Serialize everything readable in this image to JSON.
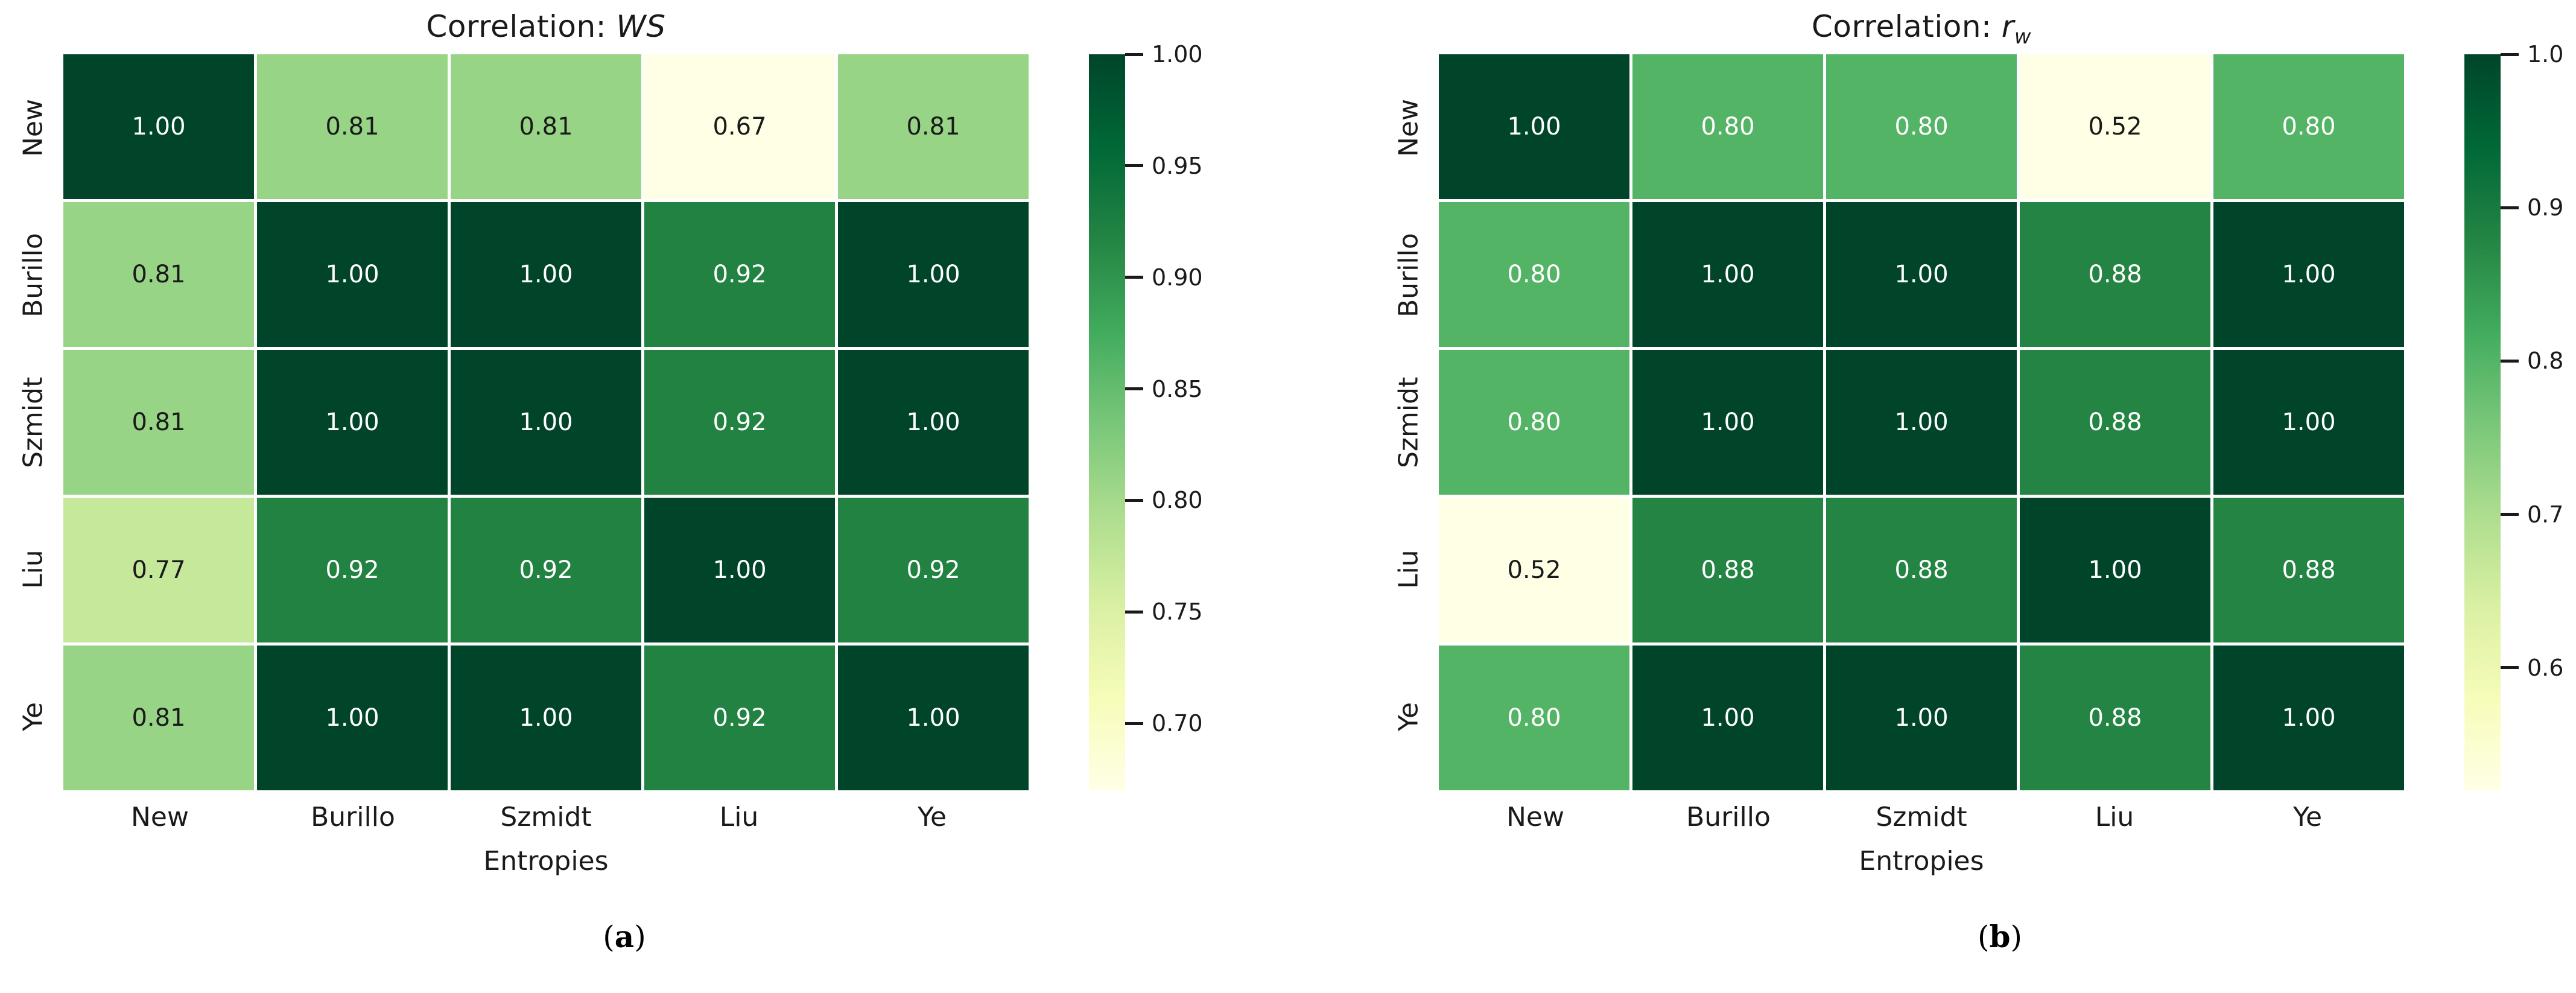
{
  "figure": {
    "background": "#ffffff",
    "description": "Two correlation heatmaps of entropy measures"
  },
  "colors": {
    "colormap_name": "YlGn",
    "colormap_stops": [
      "#ffffe5",
      "#f7fcb9",
      "#d9f0a3",
      "#addd8e",
      "#78c679",
      "#41ab5d",
      "#238443",
      "#006837",
      "#004529"
    ],
    "annotation_dark": "#1a1a1a",
    "annotation_light": "#ffffff",
    "axis_text": "#1a1a1a",
    "grid_line": "#ffffff"
  },
  "chart_data": [
    {
      "type": "heatmap",
      "title_prefix": "Correlation: ",
      "title_math": "WS",
      "title_sub": "",
      "xlabel": "Entropies",
      "x_categories": [
        "New",
        "Burillo",
        "Szmidt",
        "Liu",
        "Ye"
      ],
      "y_categories": [
        "New",
        "Burillo",
        "Szmidt",
        "Liu",
        "Ye"
      ],
      "values": [
        [
          1.0,
          0.81,
          0.81,
          0.67,
          0.81
        ],
        [
          0.81,
          1.0,
          1.0,
          0.92,
          1.0
        ],
        [
          0.81,
          1.0,
          1.0,
          0.92,
          1.0
        ],
        [
          0.77,
          0.92,
          0.92,
          1.0,
          0.92
        ],
        [
          0.81,
          1.0,
          1.0,
          0.92,
          1.0
        ]
      ],
      "value_format_decimals": 2,
      "vmin": 0.67,
      "vmax": 1.0,
      "colorbar_ticks": [
        {
          "value": 1.0,
          "label": "1.00"
        },
        {
          "value": 0.95,
          "label": "0.95"
        },
        {
          "value": 0.9,
          "label": "0.90"
        },
        {
          "value": 0.85,
          "label": "0.85"
        },
        {
          "value": 0.8,
          "label": "0.80"
        },
        {
          "value": 0.75,
          "label": "0.75"
        },
        {
          "value": 0.7,
          "label": "0.70"
        }
      ],
      "grid_on": false,
      "legend_position": "right-colorbar",
      "caption_open": "(",
      "caption_letter": "a",
      "caption_close": ")"
    },
    {
      "type": "heatmap",
      "title_prefix": "Correlation: ",
      "title_math": "r",
      "title_sub": "w",
      "xlabel": "Entropies",
      "x_categories": [
        "New",
        "Burillo",
        "Szmidt",
        "Liu",
        "Ye"
      ],
      "y_categories": [
        "New",
        "Burillo",
        "Szmidt",
        "Liu",
        "Ye"
      ],
      "values": [
        [
          1.0,
          0.8,
          0.8,
          0.52,
          0.8
        ],
        [
          0.8,
          1.0,
          1.0,
          0.88,
          1.0
        ],
        [
          0.8,
          1.0,
          1.0,
          0.88,
          1.0
        ],
        [
          0.52,
          0.88,
          0.88,
          1.0,
          0.88
        ],
        [
          0.8,
          1.0,
          1.0,
          0.88,
          1.0
        ]
      ],
      "value_format_decimals": 2,
      "vmin": 0.52,
      "vmax": 1.0,
      "colorbar_ticks": [
        {
          "value": 1.0,
          "label": "1.0"
        },
        {
          "value": 0.9,
          "label": "0.9"
        },
        {
          "value": 0.8,
          "label": "0.8"
        },
        {
          "value": 0.7,
          "label": "0.7"
        },
        {
          "value": 0.6,
          "label": "0.6"
        }
      ],
      "grid_on": false,
      "legend_position": "right-colorbar",
      "caption_open": "(",
      "caption_letter": "b",
      "caption_close": ")"
    }
  ]
}
